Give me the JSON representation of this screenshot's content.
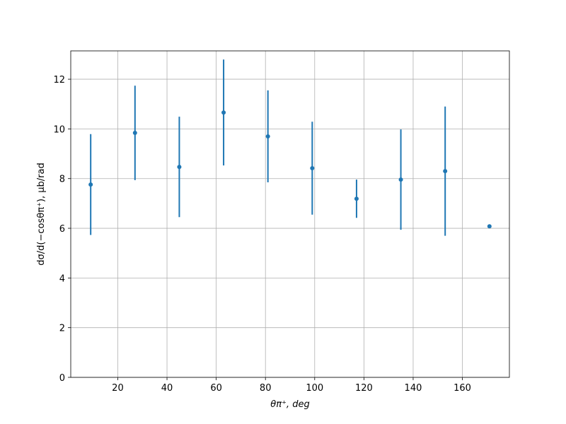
{
  "chart_data": {
    "type": "errorbar",
    "x_label": "θπ⁺, deg",
    "y_label": "dσ/d(−cosθπ⁺), μb/rad",
    "x": [
      9,
      27,
      45,
      63,
      81,
      99,
      117,
      135,
      153,
      171
    ],
    "series": [
      {
        "color": "#1f77b4",
        "values": [
          7.76,
          9.84,
          8.47,
          10.66,
          9.7,
          8.42,
          7.19,
          7.96,
          8.3,
          6.08
        ],
        "errors": [
          2.03,
          1.9,
          2.02,
          2.13,
          1.85,
          1.87,
          0.77,
          2.02,
          2.6,
          0
        ]
      }
    ],
    "xlim": [
      0.9,
      179.1
    ],
    "xticks": [
      20,
      40,
      60,
      80,
      100,
      120,
      140,
      160
    ],
    "ylim": [
      0,
      13.14
    ],
    "yticks": [
      0,
      2,
      4,
      6,
      8,
      10,
      12
    ],
    "grid": true
  }
}
